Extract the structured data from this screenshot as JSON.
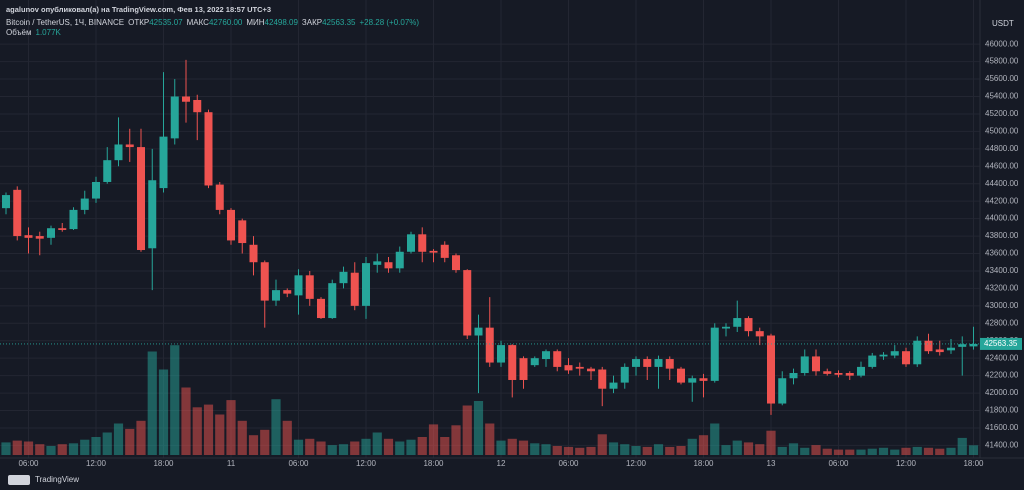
{
  "header": {
    "byline": "agalunov опубликовал(а) на TradingView.com, Фев 13, 2022 18:57 UTC+3"
  },
  "chart_data": {
    "type": "candlestick",
    "title": "Bitcoin / TetherUS, 1Ч, BINANCE",
    "ohlc_legend": [
      {
        "label": "ОТКР",
        "value": "42535.07"
      },
      {
        "label": "МАКС",
        "value": "42760.00"
      },
      {
        "label": "МИН",
        "value": "42498.09"
      },
      {
        "label": "ЗАКР",
        "value": "42563.35"
      }
    ],
    "change": "+28.28 (+0.07%)",
    "y_unit": "USDT",
    "last_price_label": "42563.35",
    "up_color": "#26a69a",
    "down_color": "#ef5350",
    "categories": [
      null,
      null,
      "06:00",
      null,
      null,
      null,
      null,
      null,
      "12:00",
      null,
      null,
      null,
      null,
      null,
      "18:00",
      null,
      null,
      null,
      null,
      null,
      "11",
      null,
      null,
      null,
      null,
      null,
      "06:00",
      null,
      null,
      null,
      null,
      null,
      "12:00",
      null,
      null,
      null,
      null,
      null,
      "18:00",
      null,
      null,
      null,
      null,
      null,
      "12",
      null,
      null,
      null,
      null,
      null,
      "06:00",
      null,
      null,
      null,
      null,
      null,
      "12:00",
      null,
      null,
      null,
      null,
      null,
      "18:00",
      null,
      null,
      null,
      null,
      null,
      "13",
      null,
      null,
      null,
      null,
      null,
      "06:00",
      null,
      null,
      null,
      null,
      null,
      "12:00",
      null,
      null,
      null,
      null,
      null,
      "18:00"
    ],
    "open": [
      44120,
      44330,
      43810,
      43800,
      43780,
      43890,
      43880,
      44100,
      44230,
      44420,
      44670,
      44850,
      44820,
      43660,
      44350,
      44920,
      45400,
      45360,
      45220,
      44390,
      44100,
      43980,
      43700,
      43500,
      43060,
      43180,
      43120,
      43350,
      43080,
      42860,
      43260,
      43380,
      43000,
      43470,
      43500,
      43430,
      43620,
      43820,
      43630,
      43700,
      43580,
      43410,
      42660,
      42750,
      42350,
      42550,
      42400,
      42320,
      42390,
      42480,
      42320,
      42300,
      42280,
      42270,
      42050,
      42120,
      42300,
      42390,
      42300,
      42390,
      42280,
      42120,
      42170,
      42140,
      42740,
      42760,
      42860,
      42710,
      42660,
      41880,
      42170,
      42230,
      42420,
      42250,
      42230,
      42230,
      42200,
      42300,
      42420,
      42430,
      42480,
      42330,
      42600,
      42500,
      42490,
      42530,
      42535.07
    ],
    "high": [
      44300,
      44370,
      43900,
      43850,
      43920,
      43950,
      44130,
      44320,
      44480,
      44820,
      45160,
      45030,
      45030,
      44800,
      45680,
      45600,
      45820,
      45420,
      45250,
      44420,
      44120,
      44000,
      43800,
      43520,
      43300,
      43200,
      43420,
      43400,
      43100,
      43300,
      43450,
      43500,
      43560,
      43600,
      43560,
      43680,
      43850,
      43900,
      43650,
      43740,
      43600,
      43420,
      42900,
      43100,
      42600,
      42560,
      42420,
      42420,
      42500,
      42500,
      42400,
      42350,
      42300,
      42300,
      42200,
      42340,
      42420,
      42420,
      42430,
      42420,
      42300,
      42200,
      42220,
      42800,
      42800,
      43060,
      42880,
      42750,
      42680,
      42250,
      42280,
      42500,
      42500,
      42280,
      42260,
      42250,
      42360,
      42460,
      42470,
      42550,
      42520,
      42650,
      42680,
      42600,
      42620,
      42650,
      42760
    ],
    "low": [
      44050,
      43750,
      43600,
      43580,
      43700,
      43850,
      43870,
      44050,
      44180,
      44400,
      44600,
      44650,
      43620,
      43180,
      44300,
      44850,
      45100,
      44900,
      44350,
      44050,
      43700,
      43600,
      43350,
      42750,
      43000,
      43100,
      42900,
      43000,
      42850,
      42850,
      43200,
      42950,
      42850,
      43380,
      43380,
      43380,
      43600,
      43500,
      43500,
      43500,
      43380,
      42620,
      42000,
      42300,
      42300,
      41950,
      42050,
      42300,
      42300,
      42250,
      42220,
      42200,
      42150,
      41850,
      42000,
      42050,
      42200,
      42150,
      42050,
      42150,
      42100,
      41900,
      41950,
      42120,
      42650,
      42700,
      42650,
      42550,
      41750,
      41860,
      42100,
      42200,
      42200,
      42200,
      42180,
      42150,
      42180,
      42280,
      42380,
      42400,
      42300,
      42300,
      42450,
      42430,
      42450,
      42200,
      42498.09
    ],
    "close": [
      44270,
      43800,
      43780,
      43770,
      43890,
      43870,
      44100,
      44230,
      44420,
      44670,
      44850,
      44820,
      43640,
      44440,
      44940,
      45400,
      45340,
      45220,
      44380,
      44100,
      43750,
      43720,
      43500,
      43060,
      43180,
      43140,
      43350,
      43080,
      42860,
      43260,
      43390,
      43000,
      43490,
      43510,
      43430,
      43620,
      43820,
      43620,
      43610,
      43550,
      43410,
      42660,
      42750,
      42350,
      42550,
      42150,
      42150,
      42400,
      42480,
      42300,
      42260,
      42280,
      42250,
      42050,
      42120,
      42300,
      42390,
      42300,
      42390,
      42280,
      42120,
      42170,
      42140,
      42750,
      42760,
      42860,
      42710,
      42650,
      41880,
      42170,
      42230,
      42420,
      42250,
      42220,
      42210,
      42200,
      42300,
      42430,
      42440,
      42480,
      42330,
      42600,
      42480,
      42470,
      42520,
      42560,
      42563.35
    ],
    "volume": {
      "name": "Объём",
      "last_label": "1.077K",
      "values": [
        1.4,
        1.6,
        1.5,
        1.2,
        1.0,
        1.2,
        1.3,
        1.7,
        2.0,
        2.5,
        3.5,
        2.9,
        3.8,
        11.5,
        9.5,
        12.2,
        7.5,
        5.3,
        5.6,
        4.5,
        6.1,
        3.8,
        2.2,
        2.8,
        6.2,
        3.8,
        1.7,
        1.8,
        1.5,
        1.1,
        1.2,
        1.5,
        1.8,
        2.5,
        1.8,
        1.5,
        1.7,
        2.0,
        3.4,
        2.0,
        3.3,
        5.5,
        6.0,
        3.5,
        1.6,
        1.8,
        1.6,
        1.3,
        1.2,
        1.0,
        0.9,
        0.8,
        0.9,
        2.3,
        1.4,
        1.2,
        1.0,
        0.9,
        1.2,
        0.9,
        1.0,
        1.8,
        2.2,
        3.5,
        1.1,
        1.6,
        1.4,
        1.2,
        2.7,
        0.9,
        1.3,
        0.8,
        1.1,
        0.7,
        0.6,
        0.6,
        0.6,
        0.7,
        0.8,
        0.6,
        0.8,
        0.9,
        0.8,
        0.7,
        0.8,
        1.9,
        1.077
      ]
    },
    "ylim": [
      41290,
      46300
    ],
    "yticks": [
      {
        "value": 41400,
        "label": "41400.00"
      },
      {
        "value": 41600,
        "label": "41600.00"
      },
      {
        "value": 41800,
        "label": "41800.00"
      },
      {
        "value": 42000,
        "label": "42000.00"
      },
      {
        "value": 42200,
        "label": "42200.00"
      },
      {
        "value": 42400,
        "label": "42400.00"
      },
      {
        "value": 42600,
        "label": "42600.00"
      },
      {
        "value": 42800,
        "label": "42800.00"
      },
      {
        "value": 43000,
        "label": "43000.00"
      },
      {
        "value": 43200,
        "label": "43200.00"
      },
      {
        "value": 43400,
        "label": "43400.00"
      },
      {
        "value": 43600,
        "label": "43600.00"
      },
      {
        "value": 43800,
        "label": "43800.00"
      },
      {
        "value": 44000,
        "label": "44000.00"
      },
      {
        "value": 44200,
        "label": "44200.00"
      },
      {
        "value": 44400,
        "label": "44400.00"
      },
      {
        "value": 44600,
        "label": "44600.00"
      },
      {
        "value": 44800,
        "label": "44800.00"
      },
      {
        "value": 45000,
        "label": "45000.00"
      },
      {
        "value": 45200,
        "label": "45200.00"
      },
      {
        "value": 45400,
        "label": "45400.00"
      },
      {
        "value": 45600,
        "label": "45600.00"
      },
      {
        "value": 45800,
        "label": "45800.00"
      },
      {
        "value": 46000,
        "label": "46000.00"
      }
    ],
    "grid": true
  },
  "footer": {
    "brand": "TradingView"
  }
}
